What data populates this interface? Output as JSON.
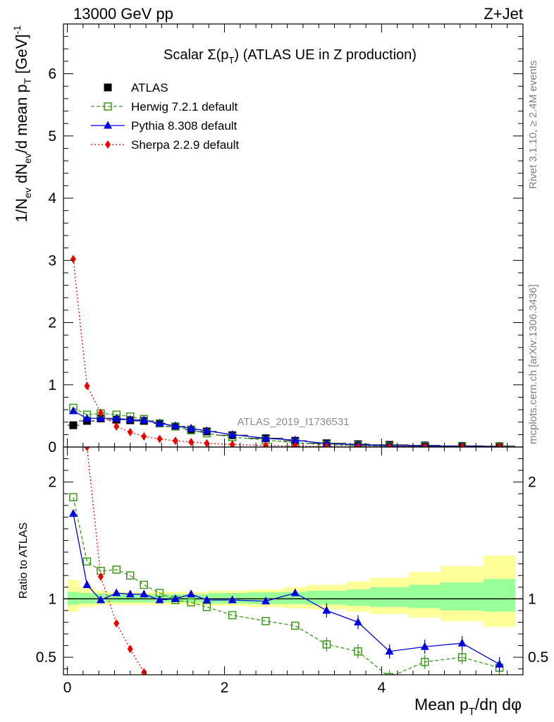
{
  "header": {
    "left": "13000 GeV pp",
    "right": "Z+Jet"
  },
  "side_labels": {
    "rivet": "Rivet 3.1.10, ≥ 2.4M events",
    "mcplots": "mcplots.cern.ch [arXiv:1306.3436]"
  },
  "chart_data": {
    "type": "scatter",
    "title": "Scalar Σ(p_T) (ATLAS UE in Z production)",
    "watermark": "ATLAS_2019_I1736531",
    "xlabel": "Mean p_T/dη dφ",
    "ylabel_top": "1/N_ev dN_ev/d mean p_T [GeV]^-1",
    "ylabel_bottom": "Ratio to ATLAS",
    "xlim": [
      -0.05,
      5.8
    ],
    "ylim_top": [
      0,
      6.8
    ],
    "ylim_bottom": [
      0.35,
      2.3
    ],
    "x_ticks": [
      "0",
      "2",
      "4"
    ],
    "y_ticks_top": [
      "0",
      "1",
      "2",
      "3",
      "4",
      "5",
      "6"
    ],
    "y_ticks_bottom": [
      "0.5",
      "1",
      "2"
    ],
    "x": [
      0.075,
      0.25,
      0.425,
      0.625,
      0.8,
      0.975,
      1.175,
      1.375,
      1.575,
      1.775,
      2.1,
      2.525,
      2.9,
      3.3,
      3.7,
      4.1,
      4.55,
      5.025,
      5.5
    ],
    "x_err": [
      0.075,
      0.1,
      0.075,
      0.125,
      0.05,
      0.125,
      0.075,
      0.125,
      0.075,
      0.125,
      0.2,
      0.225,
      0.15,
      0.25,
      0.15,
      0.25,
      0.2,
      0.275,
      0.2
    ],
    "band_inner": [
      [
        0.0,
        0.95,
        1.06
      ],
      [
        0.15,
        0.96,
        1.05
      ],
      [
        0.35,
        0.965,
        1.045
      ],
      [
        0.5,
        0.97,
        1.04
      ],
      [
        1.8,
        0.96,
        1.05
      ],
      [
        2.3,
        0.955,
        1.055
      ],
      [
        2.75,
        0.955,
        1.06
      ],
      [
        3.05,
        0.95,
        1.07
      ],
      [
        3.55,
        0.94,
        1.08
      ],
      [
        3.85,
        0.93,
        1.1
      ],
      [
        4.35,
        0.92,
        1.12
      ],
      [
        4.75,
        0.9,
        1.14
      ],
      [
        5.3,
        0.89,
        1.17
      ],
      [
        5.7,
        0.89,
        1.17
      ]
    ],
    "band_outer": [
      [
        0.0,
        0.89,
        1.16
      ],
      [
        0.15,
        0.93,
        1.1
      ],
      [
        0.35,
        0.945,
        1.07
      ],
      [
        0.5,
        0.95,
        1.06
      ],
      [
        1.8,
        0.94,
        1.07
      ],
      [
        2.3,
        0.93,
        1.08
      ],
      [
        2.75,
        0.92,
        1.1
      ],
      [
        3.05,
        0.91,
        1.12
      ],
      [
        3.55,
        0.89,
        1.15
      ],
      [
        3.85,
        0.87,
        1.18
      ],
      [
        4.35,
        0.84,
        1.23
      ],
      [
        4.75,
        0.81,
        1.28
      ],
      [
        5.3,
        0.76,
        1.37
      ],
      [
        5.7,
        0.76,
        1.37
      ]
    ],
    "series": [
      {
        "name": "ATLAS",
        "color": "#000000",
        "marker": "square",
        "line": "none",
        "values": [
          0.35,
          0.42,
          0.46,
          0.44,
          0.43,
          0.42,
          0.38,
          0.33,
          0.28,
          0.25,
          0.19,
          0.14,
          0.1,
          0.06,
          0.045,
          0.035,
          0.025,
          0.018,
          0.014
        ],
        "ratio": [
          1,
          1,
          1,
          1,
          1,
          1,
          1,
          1,
          1,
          1,
          1,
          1,
          1,
          1,
          1,
          1,
          1,
          1,
          1
        ]
      },
      {
        "name": "Herwig 7.2.1 default",
        "color": "#3a9a1a",
        "marker": "open-square",
        "line": "dashed",
        "values": [
          0.63,
          0.52,
          0.54,
          0.52,
          0.49,
          0.45,
          0.38,
          0.33,
          0.27,
          0.22,
          0.16,
          0.11,
          0.07,
          0.035,
          0.025,
          0.012,
          0.012,
          0.009,
          0.006
        ],
        "ratio": [
          1.87,
          1.32,
          1.24,
          1.25,
          1.2,
          1.12,
          1.05,
          0.99,
          0.97,
          0.93,
          0.86,
          0.81,
          0.77,
          0.61,
          0.55,
          0.33,
          0.46,
          0.5,
          0.41
        ]
      },
      {
        "name": "Pythia 8.308 default",
        "color": "#0000e0",
        "marker": "triangle",
        "line": "solid",
        "values": [
          0.58,
          0.46,
          0.46,
          0.46,
          0.44,
          0.43,
          0.38,
          0.34,
          0.3,
          0.26,
          0.2,
          0.14,
          0.11,
          0.055,
          0.036,
          0.02,
          0.015,
          0.011,
          0.006
        ],
        "ratio": [
          1.73,
          1.12,
          0.99,
          1.05,
          1.04,
          1.04,
          0.99,
          1.0,
          1.04,
          0.99,
          0.99,
          0.98,
          1.05,
          0.9,
          0.8,
          0.55,
          0.59,
          0.62,
          0.44
        ]
      },
      {
        "name": "Sherpa 2.2.9 default",
        "color": "#ee0000",
        "marker": "diamond",
        "line": "dotted",
        "values": [
          3.02,
          0.98,
          0.55,
          0.33,
          0.24,
          0.17,
          0.13,
          0.1,
          0.08,
          0.06,
          0.04,
          0.025,
          0.015,
          0.008,
          0.005,
          0.003,
          0.002,
          0.0015,
          0.001
        ],
        "ratio": [
          8.6,
          2.3,
          1.19,
          0.79,
          0.57,
          0.37,
          null,
          null,
          null,
          null,
          null,
          null,
          null,
          null,
          null,
          null,
          null,
          null,
          null
        ]
      }
    ]
  }
}
